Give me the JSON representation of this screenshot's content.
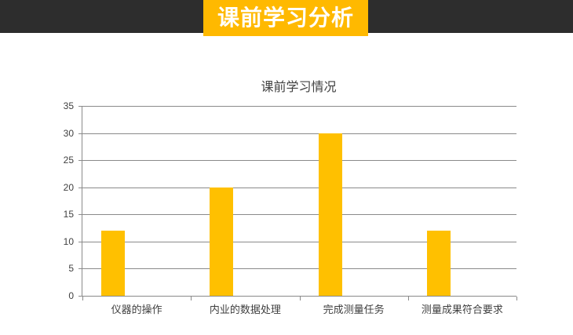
{
  "header": {
    "title": "课前学习分析",
    "bar_color": "#2D2D2D",
    "accent_color": "#FFB900",
    "title_text_color": "#FFFFFF"
  },
  "chart_data": {
    "type": "bar",
    "title": "课前学习情况",
    "categories": [
      "仪器的操作",
      "内业的数据处理",
      "完成测量任务",
      "测量成果符合要求"
    ],
    "values": [
      12,
      20,
      30,
      12
    ],
    "xlabel": "",
    "ylabel": "",
    "ylim": [
      0,
      35
    ],
    "yticks": [
      0,
      5,
      10,
      15,
      20,
      25,
      30,
      35
    ],
    "grid": true,
    "legend": "none",
    "bar_color": "#FFC000",
    "axis_color": "#8A8A8A",
    "text_color": "#3F3F3F"
  }
}
